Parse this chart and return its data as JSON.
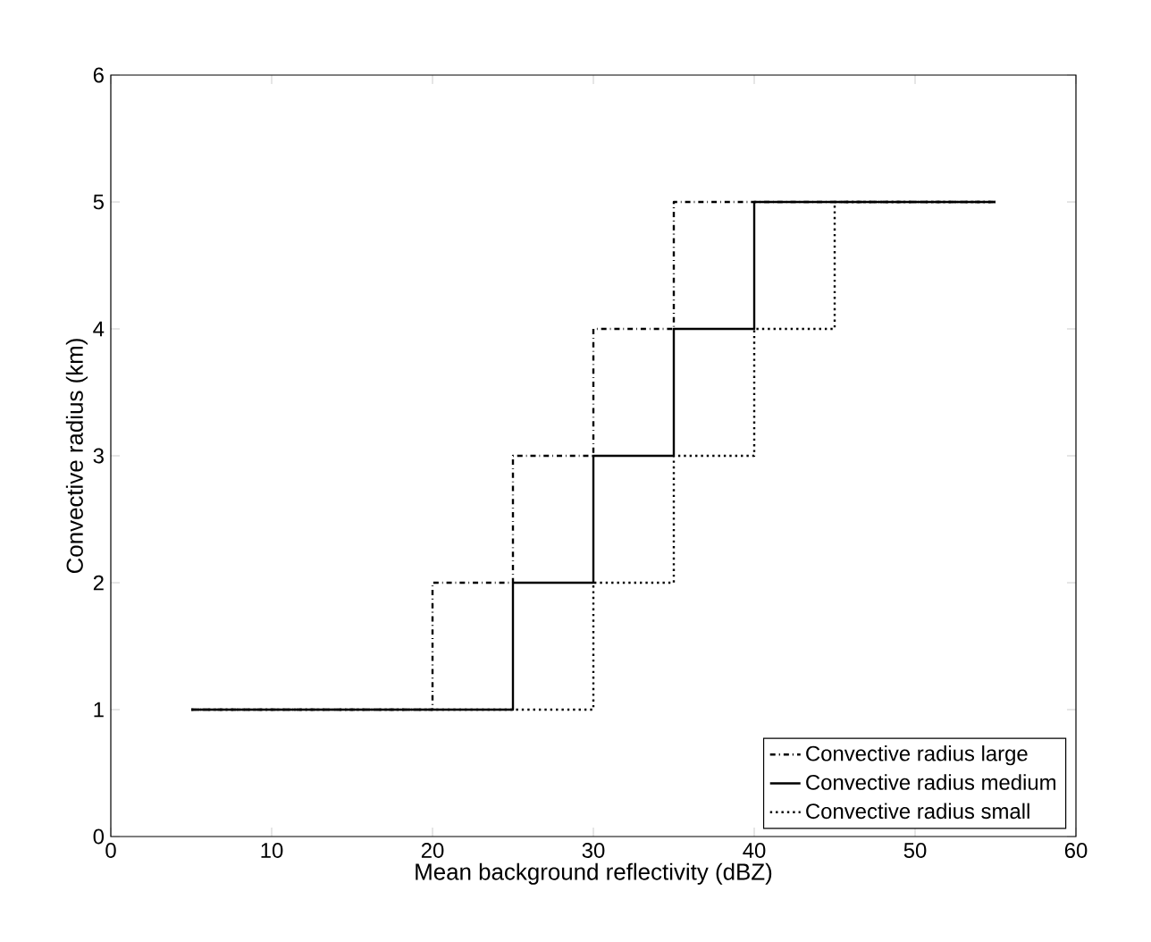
{
  "chart_data": {
    "type": "step",
    "xlabel": "Mean background reflectivity (dBZ)",
    "ylabel": "Convective radius (km)",
    "xlim": [
      0,
      60
    ],
    "ylim": [
      0,
      6
    ],
    "xticks": [
      0,
      10,
      20,
      30,
      40,
      50,
      60
    ],
    "yticks": [
      0,
      1,
      2,
      3,
      4,
      5,
      6
    ],
    "grid": false,
    "legend": "bottom right",
    "series": [
      {
        "name": "Convective radius large",
        "color": "#000000",
        "line_style": "dashdot",
        "x": [
          5,
          20,
          25,
          30,
          35,
          55
        ],
        "values": [
          1,
          2,
          3,
          4,
          5,
          5
        ]
      },
      {
        "name": "Convective radius medium",
        "color": "#000000",
        "line_style": "solid",
        "x": [
          5,
          25,
          30,
          35,
          40,
          55
        ],
        "values": [
          1,
          2,
          3,
          4,
          5,
          5
        ]
      },
      {
        "name": "Convective radius small",
        "color": "#000000",
        "line_style": "dotted",
        "x": [
          5,
          30,
          35,
          40,
          45,
          55
        ],
        "values": [
          1,
          2,
          3,
          4,
          5,
          5
        ]
      }
    ]
  }
}
